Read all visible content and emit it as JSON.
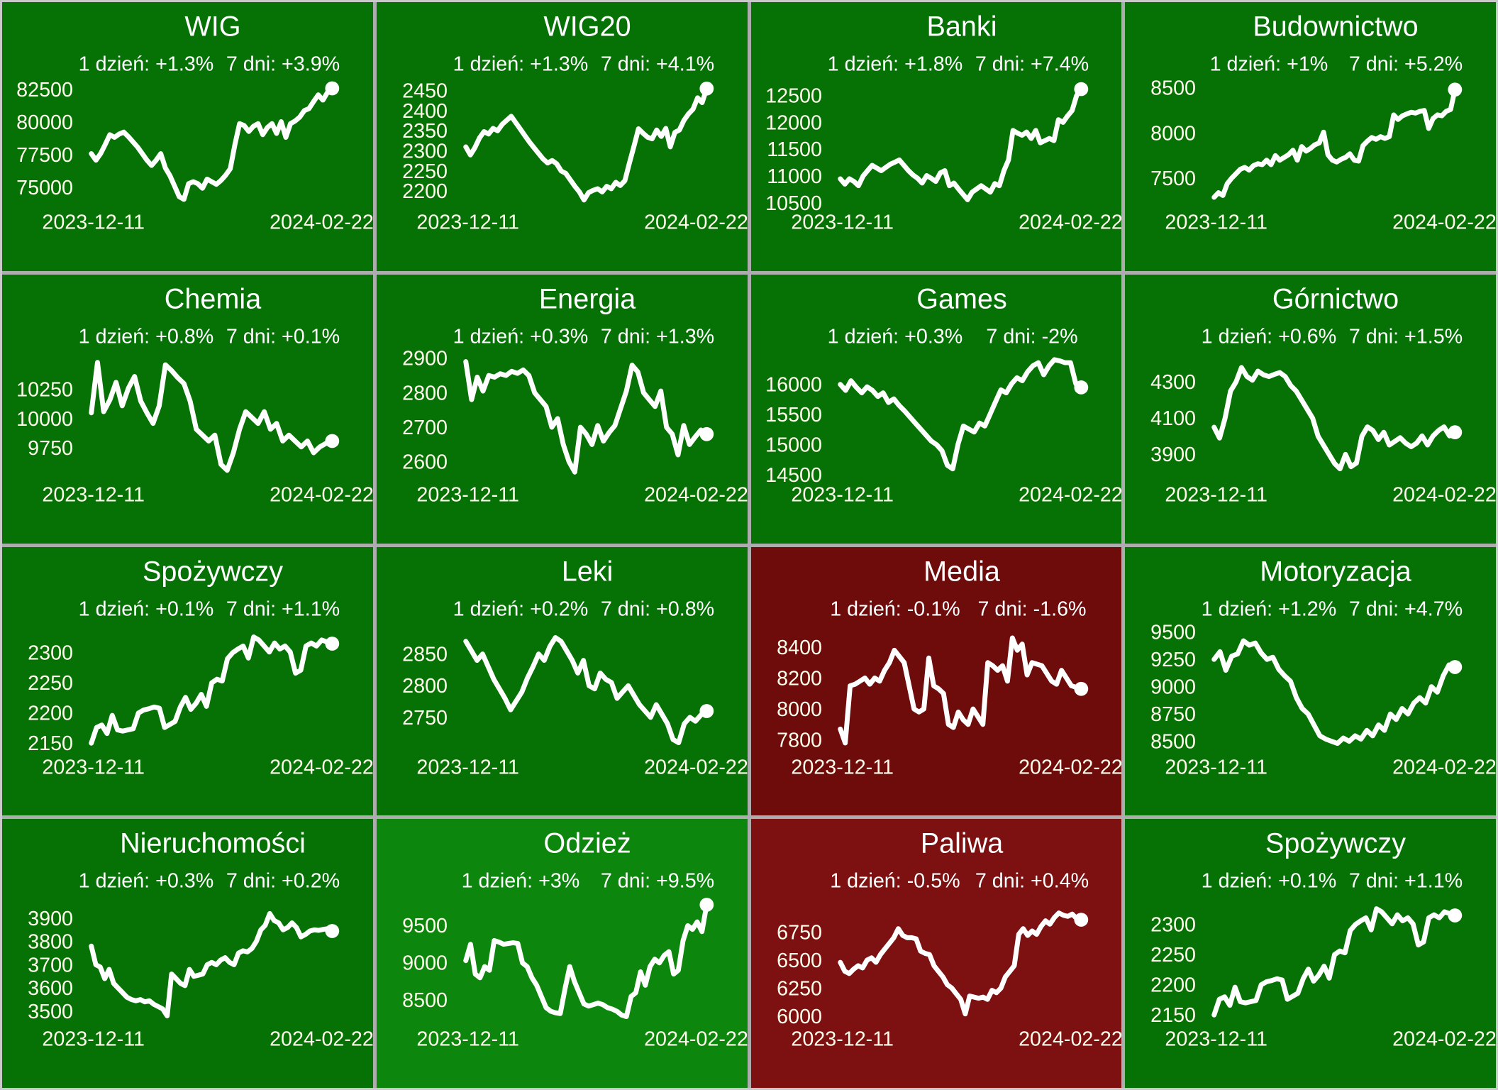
{
  "colors": {
    "green": "#067206",
    "bright_green": "#0C860C",
    "dark_red": "#6E0B0B",
    "red": "#7D1010",
    "grid_line": "#ADADAD",
    "text": "#FFFFFF",
    "line": "#FFFFFF"
  },
  "chart_data": [
    {
      "type": "line",
      "title": "WIG",
      "day_label": "1 dzień: +1.3%",
      "week_label": "7 dni: +3.9%",
      "bg": "#067206",
      "legend_position": "none",
      "grid": false,
      "yticks": [
        82500,
        80000,
        77500,
        75000
      ],
      "ylim": [
        73500,
        83200
      ],
      "xticklabels": [
        "2023-12-11",
        "2024-02-22"
      ],
      "values": [
        77600,
        77100,
        77600,
        78300,
        79050,
        78850,
        79100,
        79250,
        78900,
        78500,
        78100,
        77600,
        77100,
        76700,
        77100,
        77600,
        76500,
        75900,
        75100,
        74300,
        74100,
        75300,
        75450,
        75300,
        74950,
        75650,
        75450,
        75250,
        75550,
        75950,
        76450,
        78300,
        79900,
        79750,
        79300,
        79700,
        79900,
        79050,
        79600,
        79900,
        79150,
        80050,
        78850,
        79900,
        80100,
        80400,
        80900,
        81050,
        81600,
        82100,
        81700,
        82300,
        82600
      ]
    },
    {
      "type": "line",
      "title": "WIG20",
      "day_label": "1 dzień: +1.3%",
      "week_label": "7 dni: +4.1%",
      "bg": "#067206",
      "legend_position": "none",
      "grid": false,
      "yticks": [
        2450,
        2400,
        2350,
        2300,
        2250,
        2200
      ],
      "ylim": [
        2160,
        2475
      ],
      "xticklabels": [
        "2023-12-11",
        "2024-02-22"
      ],
      "values": [
        2310,
        2290,
        2308,
        2332,
        2348,
        2342,
        2356,
        2350,
        2366,
        2376,
        2386,
        2370,
        2354,
        2338,
        2322,
        2308,
        2294,
        2280,
        2270,
        2276,
        2268,
        2250,
        2244,
        2228,
        2212,
        2198,
        2178,
        2196,
        2202,
        2206,
        2198,
        2212,
        2206,
        2222,
        2214,
        2226,
        2270,
        2312,
        2355,
        2344,
        2334,
        2330,
        2352,
        2336,
        2356,
        2310,
        2346,
        2352,
        2376,
        2392,
        2404,
        2432,
        2420,
        2455
      ]
    },
    {
      "type": "line",
      "title": "Banki",
      "day_label": "1 dzień: +1.8%",
      "week_label": "7 dni: +7.4%",
      "bg": "#067206",
      "legend_position": "none",
      "grid": false,
      "yticks": [
        12500,
        12000,
        11500,
        11000,
        10500
      ],
      "ylim": [
        10420,
        12780
      ],
      "xticklabels": [
        "2023-12-11",
        "2024-02-22"
      ],
      "values": [
        10950,
        10850,
        10950,
        10900,
        10820,
        11000,
        11100,
        11200,
        11150,
        11100,
        11160,
        11220,
        11260,
        11300,
        11200,
        11100,
        11020,
        10960,
        10870,
        11010,
        10960,
        10900,
        11060,
        11100,
        10820,
        10870,
        10760,
        10660,
        10560,
        10700,
        10760,
        10820,
        10760,
        10700,
        10860,
        10820,
        11100,
        11300,
        11850,
        11800,
        11760,
        11820,
        11700,
        11850,
        11620,
        11660,
        11700,
        11660,
        12050,
        12000,
        12120,
        12220,
        12500,
        12620
      ]
    },
    {
      "type": "line",
      "title": "Budownictwo",
      "day_label": "1 dzień: +1%",
      "week_label": "7 dni: +5.2%",
      "bg": "#067206",
      "legend_position": "none",
      "grid": false,
      "yticks": [
        8500,
        8000,
        7500
      ],
      "ylim": [
        7180,
        8580
      ],
      "xticklabels": [
        "2023-12-11",
        "2024-02-22"
      ],
      "values": [
        7290,
        7340,
        7310,
        7440,
        7500,
        7550,
        7600,
        7620,
        7590,
        7640,
        7660,
        7650,
        7700,
        7650,
        7750,
        7700,
        7730,
        7760,
        7810,
        7700,
        7850,
        7800,
        7830,
        7870,
        7890,
        8010,
        7760,
        7700,
        7680,
        7710,
        7730,
        7770,
        7700,
        7690,
        7860,
        7910,
        7950,
        7930,
        7960,
        7940,
        7960,
        8200,
        8150,
        8190,
        8210,
        8230,
        8220,
        8240,
        8250,
        8050,
        8160,
        8200,
        8190,
        8240,
        8260,
        8480
      ]
    },
    {
      "type": "line",
      "title": "Chemia",
      "day_label": "1 dzień: +0.8%",
      "week_label": "7 dni: +0.1%",
      "bg": "#067206",
      "legend_position": "none",
      "grid": false,
      "yticks": [
        10250,
        10000,
        9750
      ],
      "ylim": [
        9480,
        10560
      ],
      "xticklabels": [
        "2023-12-11",
        "2024-02-22"
      ],
      "values": [
        10050,
        10480,
        10060,
        10160,
        10310,
        10110,
        10260,
        10360,
        10150,
        10050,
        9960,
        10110,
        10460,
        10410,
        10350,
        10300,
        10150,
        9910,
        9860,
        9810,
        9860,
        9610,
        9560,
        9710,
        9910,
        10060,
        10010,
        9960,
        10060,
        9910,
        9960,
        9810,
        9860,
        9810,
        9760,
        9810,
        9710,
        9760,
        9790,
        9810
      ]
    },
    {
      "type": "line",
      "title": "Energia",
      "day_label": "1 dzień: +0.3%",
      "week_label": "7 dni: +1.3%",
      "bg": "#067206",
      "legend_position": "none",
      "grid": false,
      "yticks": [
        2900,
        2800,
        2700,
        2600
      ],
      "ylim": [
        2548,
        2915
      ],
      "xticklabels": [
        "2023-12-11",
        "2024-02-22"
      ],
      "values": [
        2890,
        2780,
        2845,
        2805,
        2850,
        2845,
        2855,
        2850,
        2862,
        2856,
        2866,
        2850,
        2800,
        2780,
        2760,
        2700,
        2725,
        2650,
        2600,
        2570,
        2700,
        2680,
        2650,
        2705,
        2660,
        2685,
        2705,
        2755,
        2805,
        2880,
        2860,
        2800,
        2780,
        2760,
        2805,
        2700,
        2680,
        2620,
        2705,
        2650,
        2672,
        2692,
        2680
      ]
    },
    {
      "type": "line",
      "title": "Games",
      "day_label": "1 dzień: +0.3%",
      "week_label": "7 dni: -2%",
      "bg": "#067206",
      "legend_position": "none",
      "grid": false,
      "yticks": [
        16000,
        15500,
        15000,
        14500
      ],
      "ylim": [
        14420,
        16520
      ],
      "xticklabels": [
        "2023-12-11",
        "2024-02-22"
      ],
      "values": [
        16000,
        15900,
        16060,
        15950,
        15860,
        15960,
        15900,
        15800,
        15860,
        15700,
        15760,
        15650,
        15560,
        15460,
        15360,
        15260,
        15160,
        15060,
        15000,
        14900,
        14660,
        14600,
        15010,
        15310,
        15260,
        15210,
        15360,
        15310,
        15510,
        15710,
        15910,
        15860,
        16010,
        16110,
        16060,
        16210,
        16310,
        16360,
        16160,
        16310,
        16410,
        16390,
        16360,
        16360,
        16010,
        15950
      ]
    },
    {
      "type": "line",
      "title": "Górnictwo",
      "day_label": "1 dzień: +0.6%",
      "week_label": "7 dni: +1.5%",
      "bg": "#067206",
      "legend_position": "none",
      "grid": false,
      "yticks": [
        4300,
        4100,
        3900
      ],
      "ylim": [
        3760,
        4460
      ],
      "xticklabels": [
        "2023-12-11",
        "2024-02-22"
      ],
      "values": [
        4050,
        3990,
        4100,
        4250,
        4300,
        4380,
        4330,
        4310,
        4360,
        4340,
        4330,
        4342,
        4352,
        4330,
        4280,
        4250,
        4200,
        4150,
        4100,
        4000,
        3950,
        3900,
        3850,
        3820,
        3900,
        3832,
        3852,
        4000,
        4052,
        4032,
        3982,
        4022,
        3952,
        3972,
        3992,
        3962,
        3942,
        3962,
        4002,
        3952,
        4002,
        4032,
        4052,
        4002,
        4022
      ]
    },
    {
      "type": "line",
      "title": "Spożywczy",
      "day_label": "1 dzień: +0.1%",
      "week_label": "7 dni: +1.1%",
      "bg": "#067206",
      "legend_position": "none",
      "grid": false,
      "yticks": [
        2300,
        2250,
        2200,
        2150
      ],
      "ylim": [
        2135,
        2345
      ],
      "xticklabels": [
        "2023-12-11",
        "2024-02-22"
      ],
      "values": [
        2150,
        2176,
        2180,
        2166,
        2196,
        2172,
        2170,
        2172,
        2174,
        2200,
        2205,
        2207,
        2210,
        2208,
        2176,
        2181,
        2186,
        2210,
        2226,
        2206,
        2216,
        2231,
        2211,
        2250,
        2256,
        2253,
        2290,
        2300,
        2306,
        2311,
        2291,
        2326,
        2321,
        2311,
        2301,
        2316,
        2306,
        2311,
        2301,
        2266,
        2271,
        2311,
        2316,
        2311,
        2321,
        2318,
        2315
      ]
    },
    {
      "type": "line",
      "title": "Leki",
      "day_label": "1 dzień: +0.2%",
      "week_label": "7 dni: +0.8%",
      "bg": "#067206",
      "legend_position": "none",
      "grid": false,
      "yticks": [
        2850,
        2800,
        2750
      ],
      "ylim": [
        2695,
        2895
      ],
      "xticklabels": [
        "2023-12-11",
        "2024-02-22"
      ],
      "values": [
        2870,
        2855,
        2840,
        2850,
        2830,
        2810,
        2795,
        2780,
        2762,
        2776,
        2790,
        2812,
        2830,
        2850,
        2840,
        2862,
        2876,
        2870,
        2855,
        2840,
        2820,
        2840,
        2800,
        2795,
        2820,
        2810,
        2805,
        2780,
        2790,
        2800,
        2785,
        2770,
        2760,
        2750,
        2770,
        2755,
        2740,
        2715,
        2710,
        2740,
        2750,
        2744,
        2754,
        2760
      ]
    },
    {
      "type": "line",
      "title": "Media",
      "day_label": "1 dzień: -0.1%",
      "week_label": "7 dni: -1.6%",
      "bg": "#6E0B0B",
      "legend_position": "none",
      "grid": false,
      "yticks": [
        8400,
        8200,
        8000,
        7800
      ],
      "ylim": [
        7720,
        8540
      ],
      "xticklabels": [
        "2023-12-11",
        "2024-02-22"
      ],
      "values": [
        7870,
        7780,
        8150,
        8160,
        8180,
        8200,
        8160,
        8200,
        8180,
        8250,
        8300,
        8380,
        8340,
        8300,
        8150,
        8000,
        7980,
        8000,
        8330,
        8150,
        8130,
        8100,
        7900,
        7880,
        7980,
        7930,
        7900,
        8000,
        7950,
        7900,
        8300,
        8280,
        8250,
        8280,
        8180,
        8460,
        8380,
        8420,
        8220,
        8300,
        8290,
        8280,
        8230,
        8180,
        8160,
        8250,
        8200,
        8150,
        8140,
        8130
      ]
    },
    {
      "type": "line",
      "title": "Motoryzacja",
      "day_label": "1 dzień: +1.2%",
      "week_label": "7 dni: +4.7%",
      "bg": "#067206",
      "legend_position": "none",
      "grid": false,
      "yticks": [
        9500,
        9250,
        9000,
        8750,
        8500
      ],
      "ylim": [
        8400,
        9560
      ],
      "xticklabels": [
        "2023-12-11",
        "2024-02-22"
      ],
      "values": [
        9250,
        9320,
        9150,
        9280,
        9300,
        9420,
        9380,
        9400,
        9310,
        9250,
        9270,
        9160,
        9100,
        9050,
        8900,
        8800,
        8750,
        8650,
        8550,
        8520,
        8500,
        8480,
        8530,
        8500,
        8550,
        8520,
        8600,
        8550,
        8650,
        8600,
        8750,
        8700,
        8800,
        8750,
        8850,
        8900,
        8850,
        9000,
        8950,
        9100,
        9200,
        9180
      ]
    },
    {
      "type": "line",
      "title": "Nieruchomości",
      "day_label": "1 dzień: +0.3%",
      "week_label": "7 dni: +0.2%",
      "bg": "#067206",
      "legend_position": "none",
      "grid": false,
      "yticks": [
        3900,
        3800,
        3700,
        3600,
        3500
      ],
      "ylim": [
        3445,
        3990
      ],
      "xticklabels": [
        "2023-12-11",
        "2024-02-22"
      ],
      "values": [
        3780,
        3700,
        3690,
        3640,
        3680,
        3620,
        3600,
        3580,
        3560,
        3550,
        3545,
        3550,
        3540,
        3545,
        3530,
        3520,
        3510,
        3480,
        3660,
        3640,
        3620,
        3610,
        3680,
        3650,
        3655,
        3660,
        3700,
        3710,
        3700,
        3720,
        3730,
        3710,
        3700,
        3750,
        3760,
        3755,
        3770,
        3800,
        3850,
        3870,
        3920,
        3890,
        3880,
        3850,
        3860,
        3880,
        3860,
        3820,
        3830,
        3845,
        3850,
        3848,
        3852,
        3855,
        3845
      ]
    },
    {
      "type": "line",
      "title": "Odzież",
      "day_label": "1 dzień: +3%",
      "week_label": "7 dni: +9.5%",
      "bg": "#0C860C",
      "legend_position": "none",
      "grid": false,
      "yticks": [
        9500,
        9000,
        8500
      ],
      "ylim": [
        8180,
        9880
      ],
      "xticklabels": [
        "2023-12-11",
        "2024-02-22"
      ],
      "values": [
        9030,
        9250,
        8850,
        8800,
        8950,
        8900,
        9300,
        9280,
        9250,
        9260,
        9270,
        9260,
        9000,
        8950,
        8800,
        8700,
        8550,
        8400,
        8350,
        8330,
        8320,
        8650,
        8950,
        8750,
        8600,
        8450,
        8420,
        8440,
        8460,
        8440,
        8400,
        8380,
        8350,
        8300,
        8280,
        8550,
        8600,
        8880,
        8700,
        8950,
        9050,
        9000,
        9100,
        9150,
        8850,
        8900,
        9300,
        9500,
        9450,
        9550,
        9420,
        9780
      ]
    },
    {
      "type": "line",
      "title": "Paliwa",
      "day_label": "1 dzień: -0.5%",
      "week_label": "7 dni: +0.4%",
      "bg": "#7D1010",
      "legend_position": "none",
      "grid": false,
      "yticks": [
        6750,
        6500,
        6250,
        6000
      ],
      "ylim": [
        5930,
        7060
      ],
      "xticklabels": [
        "2023-12-11",
        "2024-02-22"
      ],
      "values": [
        6480,
        6400,
        6380,
        6420,
        6450,
        6430,
        6500,
        6520,
        6480,
        6550,
        6600,
        6650,
        6700,
        6780,
        6720,
        6700,
        6700,
        6690,
        6580,
        6560,
        6550,
        6450,
        6400,
        6350,
        6280,
        6250,
        6200,
        6150,
        6020,
        6180,
        6170,
        6160,
        6170,
        6150,
        6230,
        6210,
        6250,
        6350,
        6400,
        6450,
        6730,
        6780,
        6720,
        6760,
        6730,
        6800,
        6850,
        6820,
        6880,
        6920,
        6900,
        6890,
        6910,
        6870,
        6860
      ]
    },
    {
      "type": "line",
      "title": "Spożywczy",
      "day_label": "1 dzień: +0.1%",
      "week_label": "7 dni: +1.1%",
      "bg": "#067206",
      "legend_position": "none",
      "grid": false,
      "yticks": [
        2300,
        2250,
        2200,
        2150
      ],
      "ylim": [
        2135,
        2345
      ],
      "xticklabels": [
        "2023-12-11",
        "2024-02-22"
      ],
      "values": [
        2150,
        2176,
        2180,
        2166,
        2196,
        2172,
        2170,
        2172,
        2174,
        2200,
        2205,
        2207,
        2210,
        2208,
        2176,
        2181,
        2186,
        2210,
        2226,
        2206,
        2216,
        2231,
        2211,
        2250,
        2256,
        2253,
        2290,
        2300,
        2306,
        2311,
        2291,
        2326,
        2321,
        2311,
        2301,
        2316,
        2306,
        2311,
        2301,
        2266,
        2271,
        2311,
        2316,
        2311,
        2321,
        2318,
        2315
      ]
    }
  ]
}
